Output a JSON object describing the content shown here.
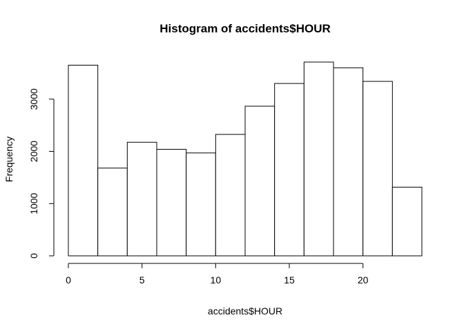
{
  "chart_data": {
    "type": "bar",
    "title": "Histogram of accidents$HOUR",
    "xlabel": "accidents$HOUR",
    "ylabel": "Frequency",
    "bins": [
      {
        "from": 0,
        "to": 2,
        "value": 3650
      },
      {
        "from": 2,
        "to": 4,
        "value": 1680
      },
      {
        "from": 4,
        "to": 6,
        "value": 2175
      },
      {
        "from": 6,
        "to": 8,
        "value": 2040
      },
      {
        "from": 8,
        "to": 10,
        "value": 1970
      },
      {
        "from": 10,
        "to": 12,
        "value": 2325
      },
      {
        "from": 12,
        "to": 14,
        "value": 2865
      },
      {
        "from": 14,
        "to": 16,
        "value": 3300
      },
      {
        "from": 16,
        "to": 18,
        "value": 3710
      },
      {
        "from": 18,
        "to": 20,
        "value": 3600
      },
      {
        "from": 20,
        "to": 22,
        "value": 3340
      },
      {
        "from": 22,
        "to": 24,
        "value": 1315
      }
    ],
    "xlim": [
      0,
      24
    ],
    "ylim": [
      0,
      3710
    ],
    "x_ticks": [
      0,
      5,
      10,
      15,
      20
    ],
    "y_ticks": [
      0,
      1000,
      2000,
      3000
    ],
    "grid": false,
    "legend": "none",
    "bar_fill": "#ffffff",
    "bar_stroke": "#000000"
  }
}
